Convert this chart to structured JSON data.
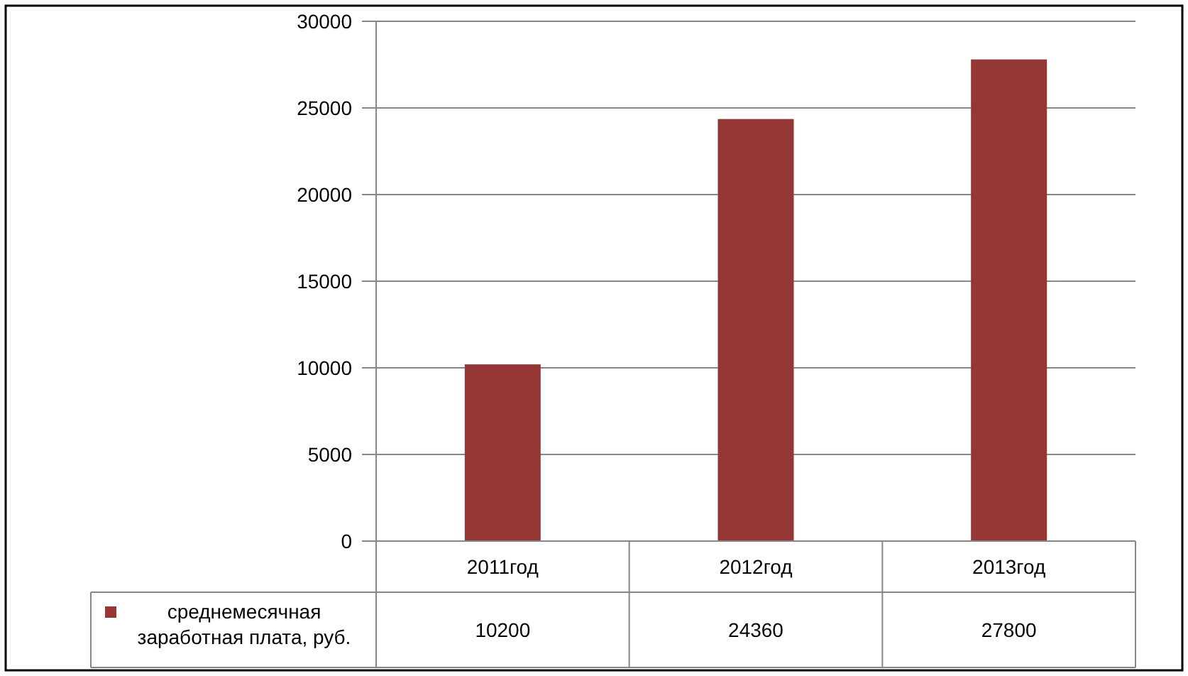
{
  "chart_data": {
    "type": "bar",
    "categories": [
      "2011год",
      "2012год",
      "2013год"
    ],
    "series": [
      {
        "name": "среднемесячная заработная плата, руб.",
        "color": "#953735",
        "values": [
          10200,
          24360,
          27800
        ]
      }
    ],
    "ylim": [
      0,
      30000
    ],
    "yticks": [
      0,
      5000,
      10000,
      15000,
      20000,
      25000,
      30000
    ],
    "grid": "y",
    "data_labels": true,
    "legend": "bottom"
  }
}
